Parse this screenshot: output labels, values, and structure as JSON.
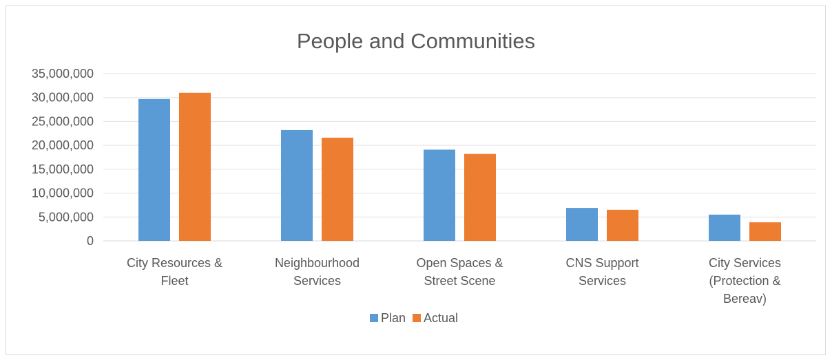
{
  "chart_data": {
    "type": "bar",
    "title": "People and Communities",
    "categories": [
      [
        "City Resources &",
        "Fleet"
      ],
      [
        "Neighbourhood",
        "Services"
      ],
      [
        "Open Spaces &",
        "Street Scene"
      ],
      [
        "CNS Support",
        "Services"
      ],
      [
        "City Services",
        "(Protection &",
        "Bereav)"
      ]
    ],
    "series": [
      {
        "name": "Plan",
        "color": "#5b9bd5",
        "values": [
          29700000,
          23200000,
          19100000,
          6900000,
          5500000
        ]
      },
      {
        "name": "Actual",
        "color": "#ed7d31",
        "values": [
          31000000,
          21600000,
          18200000,
          6500000,
          3900000
        ]
      }
    ],
    "yticks": [
      "0",
      "5,000,000",
      "10,000,000",
      "15,000,000",
      "20,000,000",
      "25,000,000",
      "30,000,000",
      "35,000,000"
    ],
    "ylim": [
      0,
      35000000
    ],
    "xlabel": "",
    "ylabel": "",
    "grid": true,
    "legend_position": "bottom"
  }
}
